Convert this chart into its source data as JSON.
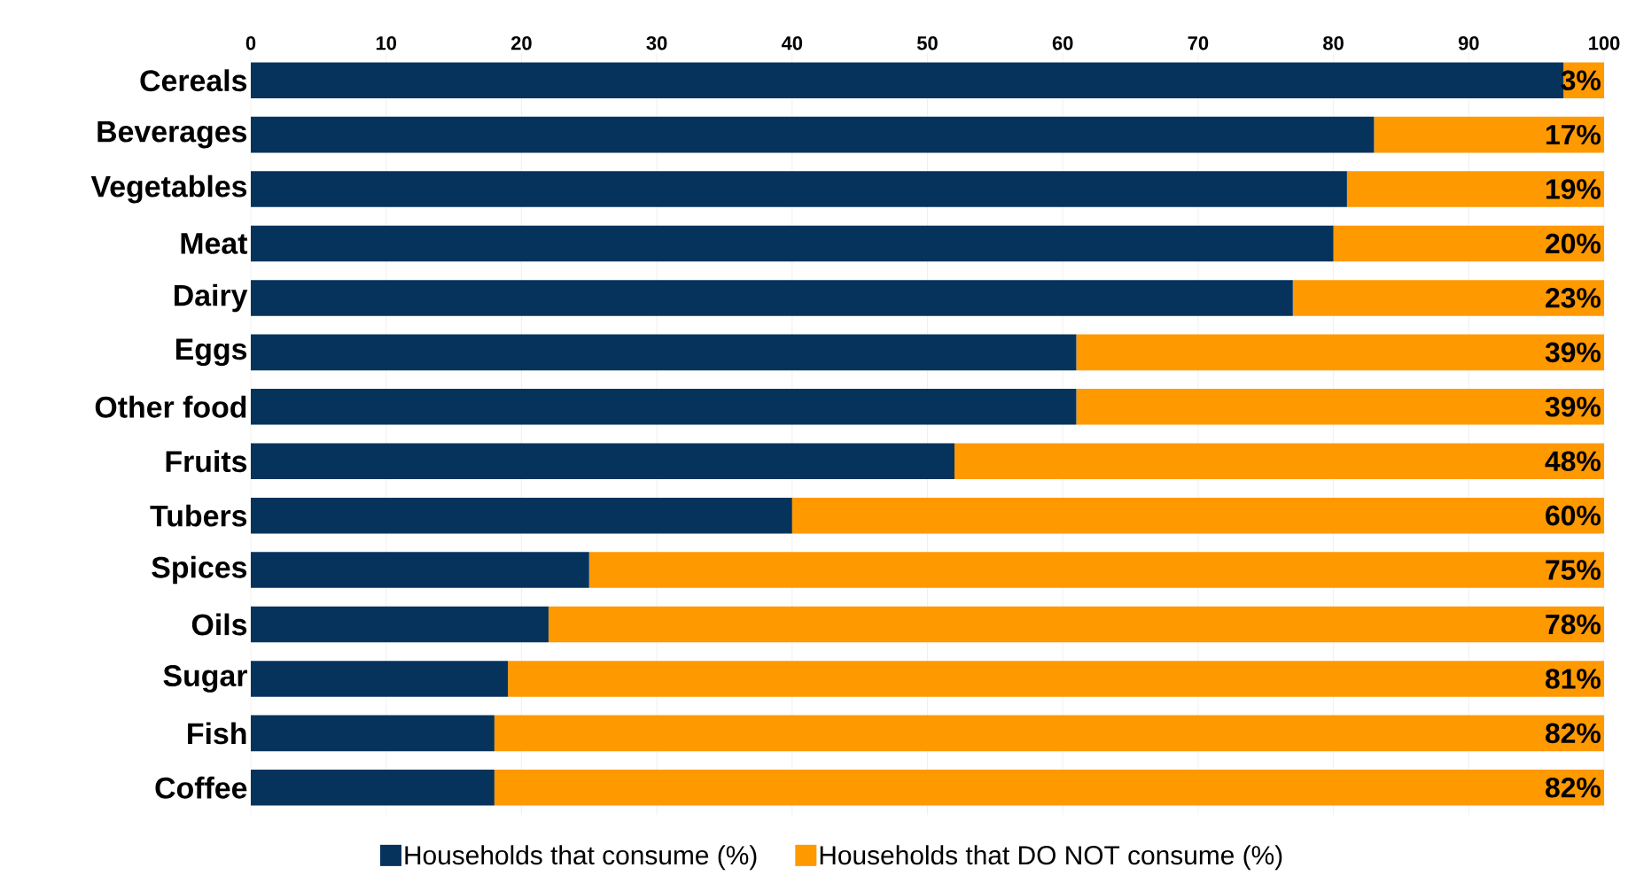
{
  "chart_data": {
    "type": "bar",
    "orientation": "horizontal",
    "stacked": true,
    "categories": [
      "Cereals",
      "Beverages",
      "Vegetables",
      "Meat",
      "Dairy",
      "Eggs",
      "Other food",
      "Fruits",
      "Tubers",
      "Spices",
      "Oils",
      "Sugar",
      "Fish",
      "Coffee"
    ],
    "series": [
      {
        "name": "Households that consume (%)",
        "color": "#06335c",
        "values": [
          97,
          83,
          81,
          80,
          77,
          61,
          61,
          52,
          40,
          25,
          22,
          19,
          18,
          18
        ]
      },
      {
        "name": "Households that DO NOT consume (%)",
        "color": "#ff9900",
        "values": [
          3,
          17,
          19,
          20,
          23,
          39,
          39,
          48,
          60,
          75,
          78,
          81,
          82,
          82
        ],
        "value_labels": [
          "3%",
          "17%",
          "19%",
          "20%",
          "23%",
          "39%",
          "39%",
          "48%",
          "60%",
          "75%",
          "78%",
          "81%",
          "82%",
          "82%"
        ]
      }
    ],
    "xlim": [
      0,
      100
    ],
    "xticks": [
      0,
      10,
      20,
      30,
      40,
      50,
      60,
      70,
      80,
      90,
      100
    ],
    "grid": "x",
    "legend": "bottom"
  }
}
